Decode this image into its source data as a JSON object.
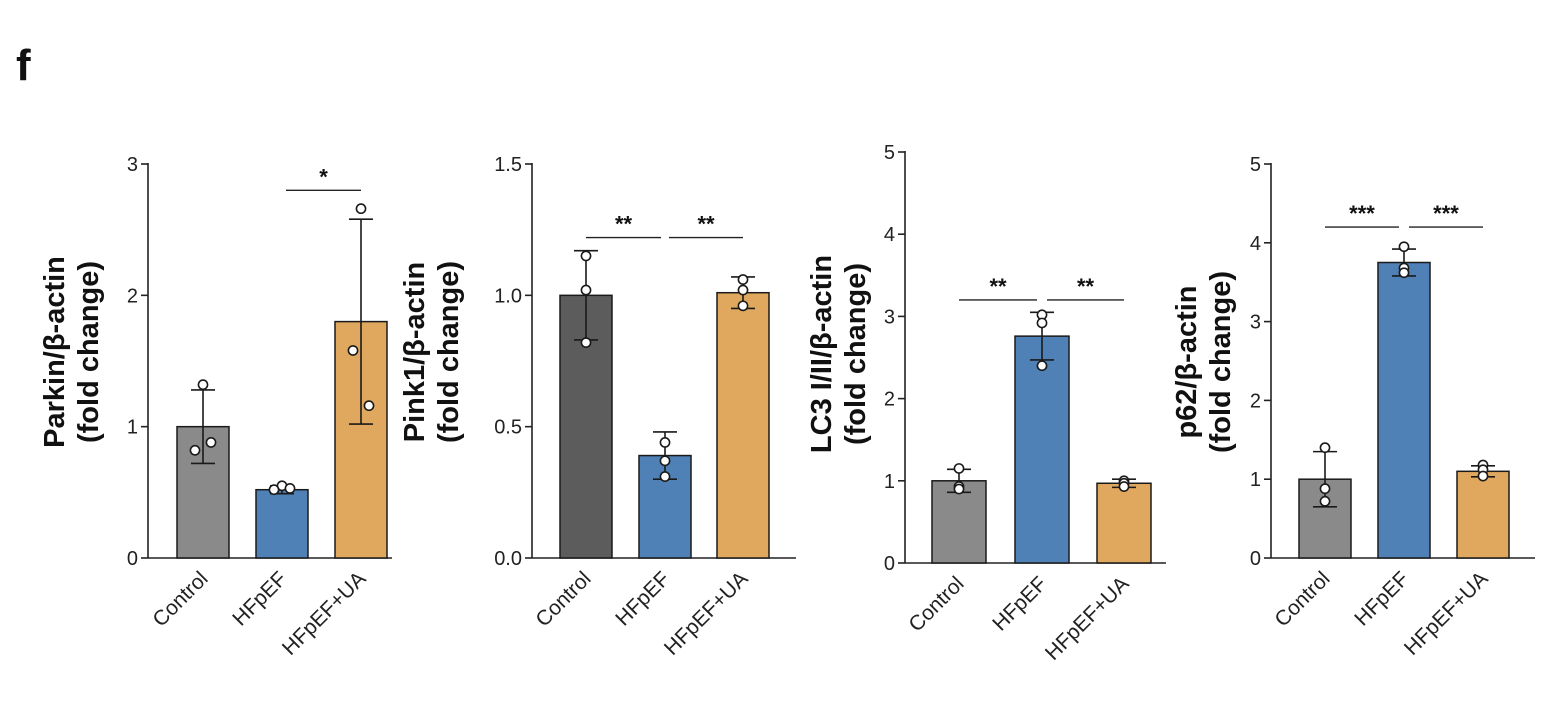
{
  "panel_letter": "f",
  "colors": {
    "control": "#8a8a8a",
    "control_dark": "#5c5c5c",
    "hfpef": "#4f80b6",
    "hfpef_ua": "#e0a85e"
  },
  "chart_data": [
    {
      "type": "bar",
      "ylabel_line1": "Parkin/β-actin",
      "ylabel_line2": "(fold change)",
      "categories": [
        "Control",
        "HFpEF",
        "HFpEF+UA"
      ],
      "values": [
        1.0,
        0.52,
        1.8
      ],
      "errors": [
        0.28,
        0.03,
        0.78
      ],
      "points": [
        [
          1.32,
          0.82,
          0.88
        ],
        [
          0.55,
          0.52,
          0.53
        ],
        [
          2.66,
          1.58,
          1.16
        ]
      ],
      "bar_colors": [
        "#8a8a8a",
        "#4f80b6",
        "#e0a85e"
      ],
      "ylim": [
        0,
        3
      ],
      "yticks": [
        0,
        1,
        2,
        3
      ],
      "ytick_labels": [
        "0",
        "1",
        "2",
        "3"
      ],
      "significance": [
        {
          "from": 1,
          "to": 2,
          "label": "*",
          "y": 2.8
        }
      ]
    },
    {
      "type": "bar",
      "ylabel_line1": "Pink1/β-actin",
      "ylabel_line2": "(fold change)",
      "categories": [
        "Control",
        "HFpEF",
        "HFpEF+UA"
      ],
      "values": [
        1.0,
        0.39,
        1.01
      ],
      "errors": [
        0.17,
        0.09,
        0.06
      ],
      "points": [
        [
          1.15,
          1.02,
          0.82
        ],
        [
          0.44,
          0.37,
          0.31
        ],
        [
          1.06,
          1.02,
          0.96
        ]
      ],
      "bar_colors": [
        "#5c5c5c",
        "#4f80b6",
        "#e0a85e"
      ],
      "ylim": [
        0,
        1.5
      ],
      "yticks": [
        0,
        0.5,
        1.0,
        1.5
      ],
      "ytick_labels": [
        "0.0",
        "0.5",
        "1.0",
        "1.5"
      ],
      "significance": [
        {
          "from": 0,
          "to": 1,
          "label": "**",
          "y": 1.22
        },
        {
          "from": 1,
          "to": 2,
          "label": "**",
          "y": 1.22
        }
      ]
    },
    {
      "type": "bar",
      "ylabel_line1": "LC3 I/II/β-actin",
      "ylabel_line2": "(fold change)",
      "categories": [
        "Control",
        "HFpEF",
        "HFpEF+UA"
      ],
      "values": [
        1.0,
        2.76,
        0.97
      ],
      "errors": [
        0.14,
        0.29,
        0.05
      ],
      "points": [
        [
          1.15,
          0.93,
          0.9
        ],
        [
          3.02,
          2.92,
          2.4
        ],
        [
          1.0,
          0.97,
          0.93
        ]
      ],
      "bar_colors": [
        "#8a8a8a",
        "#4f80b6",
        "#e0a85e"
      ],
      "ylim": [
        0,
        5
      ],
      "yticks": [
        0,
        1,
        2,
        3,
        4,
        5
      ],
      "ytick_labels": [
        "0",
        "1",
        "2",
        "3",
        "4",
        "5"
      ],
      "significance": [
        {
          "from": 0,
          "to": 1,
          "label": "**",
          "y": 3.2
        },
        {
          "from": 1,
          "to": 2,
          "label": "**",
          "y": 3.2
        }
      ]
    },
    {
      "type": "bar",
      "ylabel_line1": "p62/β-actin",
      "ylabel_line2": "(fold change)",
      "categories": [
        "Control",
        "HFpEF",
        "HFpEF+UA"
      ],
      "values": [
        1.0,
        3.75,
        1.1
      ],
      "errors": [
        0.35,
        0.17,
        0.07
      ],
      "points": [
        [
          1.4,
          0.88,
          0.72
        ],
        [
          3.95,
          3.68,
          3.62
        ],
        [
          1.18,
          1.12,
          1.04
        ]
      ],
      "bar_colors": [
        "#8a8a8a",
        "#4f80b6",
        "#e0a85e"
      ],
      "ylim": [
        0,
        5
      ],
      "yticks": [
        0,
        1,
        2,
        3,
        4,
        5
      ],
      "ytick_labels": [
        "0",
        "1",
        "2",
        "3",
        "4",
        "5"
      ],
      "significance": [
        {
          "from": 0,
          "to": 1,
          "label": "***",
          "y": 4.2
        },
        {
          "from": 1,
          "to": 2,
          "label": "***",
          "y": 4.2
        }
      ]
    }
  ]
}
